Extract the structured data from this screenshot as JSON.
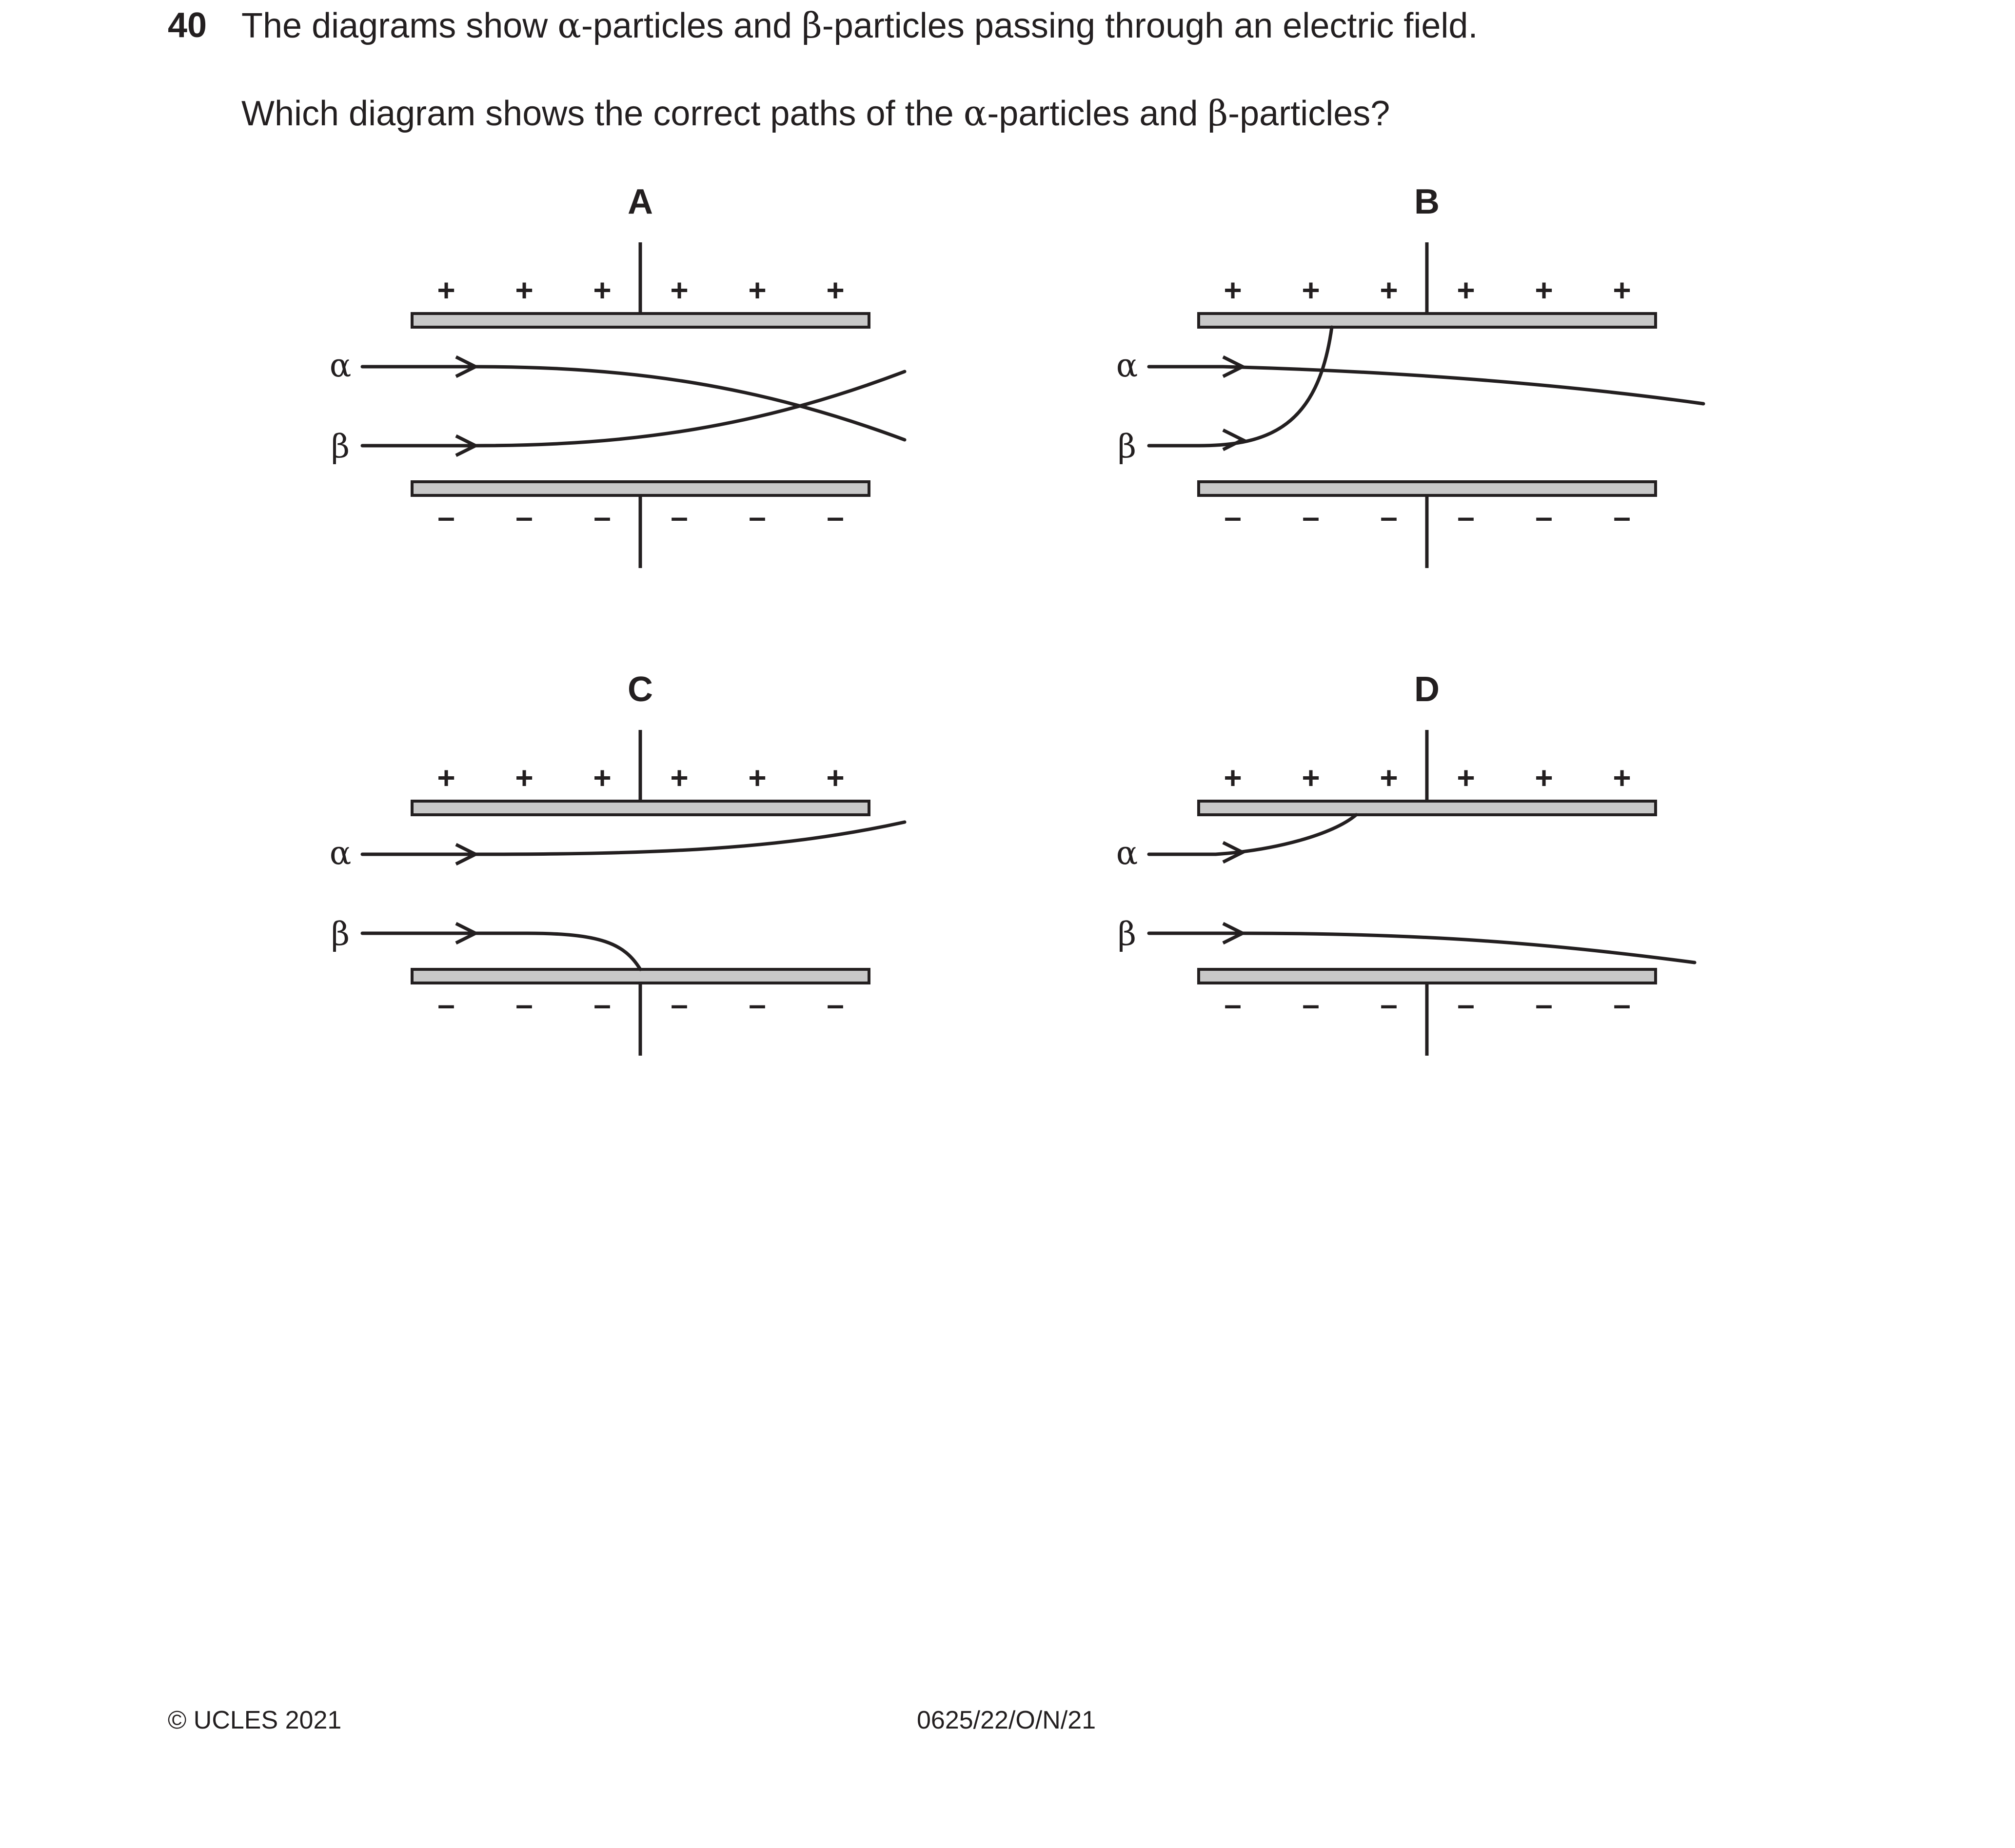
{
  "question": {
    "number": "40",
    "stem_pre": "The diagrams show ",
    "alpha": "α",
    "stem_mid": "-particles and ",
    "beta": "β",
    "stem_post": "-particles passing through an electric field.",
    "prompt_pre": "Which diagram shows the correct paths of the ",
    "prompt_mid": "-particles and ",
    "prompt_post": "-particles?"
  },
  "options": [
    {
      "label": "A",
      "alpha_label": "α",
      "beta_label": "β",
      "plus_sign": "+",
      "minus_sign": "–"
    },
    {
      "label": "B",
      "alpha_label": "α",
      "beta_label": "β",
      "plus_sign": "+",
      "minus_sign": "–"
    },
    {
      "label": "C",
      "alpha_label": "α",
      "beta_label": "β",
      "plus_sign": "+",
      "minus_sign": "–"
    },
    {
      "label": "D",
      "alpha_label": "α",
      "beta_label": "β",
      "plus_sign": "+",
      "minus_sign": "–"
    }
  ],
  "footer": {
    "copyright": "© UCLES 2021",
    "code": "0625/22/O/N/21"
  },
  "colors": {
    "ink": "#231f20",
    "plate_fill": "#c8c8c8"
  }
}
